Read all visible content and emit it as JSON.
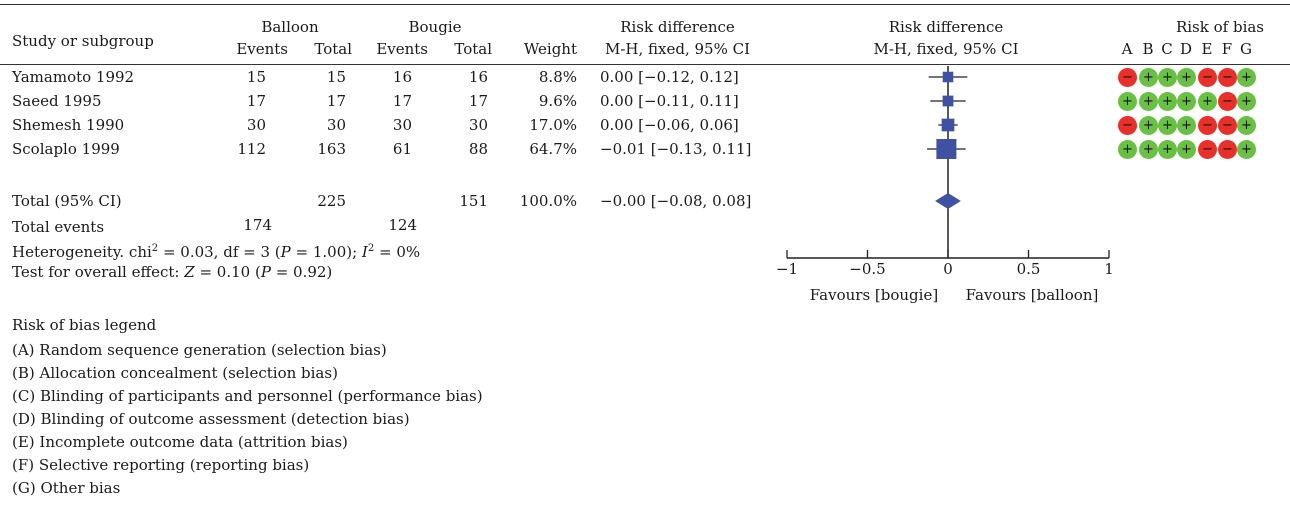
{
  "header": {
    "study_or_subgroup": "Study or subgroup",
    "group1": "Balloon",
    "group2": "Bougie",
    "events": "Events",
    "total": "Total",
    "weight": "Weight",
    "rd_title": "Risk difference",
    "rd_method": "M-H, fixed, 95% CI",
    "rob_title": "Risk of bias",
    "rob_letters": [
      "A",
      "B",
      "C",
      "D",
      "E",
      "F",
      "G"
    ]
  },
  "studies": [
    {
      "name": "Yamamoto 1992",
      "e1": "15",
      "t1": "15",
      "e2": "16",
      "t2": "16",
      "weight": "8.8%",
      "ci_text": "0.00 [−0.12, 0.12]",
      "rob": [
        "-",
        "+",
        "+",
        "+",
        "-",
        "-",
        "+"
      ]
    },
    {
      "name": "Saeed 1995",
      "e1": "17",
      "t1": "17",
      "e2": "17",
      "t2": "17",
      "weight": "9.6%",
      "ci_text": "0.00 [−0.11, 0.11]",
      "rob": [
        "+",
        "+",
        "+",
        "+",
        "+",
        "-",
        "+"
      ]
    },
    {
      "name": "Shemesh 1990",
      "e1": "30",
      "t1": "30",
      "e2": "30",
      "t2": "30",
      "weight": "17.0%",
      "ci_text": "0.00 [−0.06, 0.06]",
      "rob": [
        "-",
        "+",
        "+",
        "+",
        "-",
        "-",
        "+"
      ]
    },
    {
      "name": "Scolaplo 1999",
      "e1": "112",
      "t1": "163",
      "e2": "61",
      "t2": "88",
      "weight": "64.7%",
      "ci_text": "−0.01 [−0.13, 0.11]",
      "rob": [
        "+",
        "+",
        "+",
        "+",
        "-",
        "-",
        "+"
      ]
    }
  ],
  "total_row": {
    "name": "Total (95% CI)",
    "t1": "225",
    "t2": "151",
    "weight": "100.0%",
    "ci_text": "−0.00 [−0.08, 0.08]"
  },
  "total_events": {
    "label": "Total events",
    "e1": "174",
    "e2": "124"
  },
  "heterogeneity": {
    "prefix": "Heterogeneity. chi",
    "sup": "2",
    "mid": " = 0.03, df = 3 (",
    "p": "P",
    "p_val": " = 1.00); ",
    "i": "I",
    "i_sup": "2",
    "i_val": " = 0%"
  },
  "overall_effect": {
    "prefix": "Test for overall effect: ",
    "z": "Z",
    "z_val": " = 0.10 (",
    "p": "P",
    "p_val": " = 0.92)"
  },
  "legend": {
    "title": "Risk of bias legend",
    "items": [
      "(A) Random sequence generation (selection bias)",
      "(B) Allocation concealment (selection bias)",
      "(C) Blinding of participants and personnel (performance bias)",
      "(D) Blinding of outcome assessment (detection bias)",
      "(E) Incomplete outcome data (attrition bias)",
      "(F) Selective reporting (reporting bias)",
      "(G) Other bias"
    ]
  },
  "colors": {
    "marker": "#3f51a3",
    "rob_low": "#6abf45",
    "rob_high": "#e8302a",
    "line": "#333333"
  },
  "chart_data": {
    "type": "forest",
    "title": "Risk difference",
    "subtitle": "M-H, fixed, 95% CI",
    "xlim": [
      -1,
      1
    ],
    "xticks": [
      "−1",
      "−0.5",
      "0",
      "0.5",
      "1"
    ],
    "xtick_values": [
      -1,
      -0.5,
      0,
      0.5,
      1
    ],
    "favours_left": "Favours [bougie]",
    "favours_right": "Favours [balloon]",
    "studies": [
      {
        "name": "Yamamoto 1992",
        "estimate": 0.0,
        "lower": -0.12,
        "upper": 0.12,
        "weight": 8.8
      },
      {
        "name": "Saeed 1995",
        "estimate": 0.0,
        "lower": -0.11,
        "upper": 0.11,
        "weight": 9.6
      },
      {
        "name": "Shemesh 1990",
        "estimate": 0.0,
        "lower": -0.06,
        "upper": 0.06,
        "weight": 17.0
      },
      {
        "name": "Scolaplo 1999",
        "estimate": -0.01,
        "lower": -0.13,
        "upper": 0.11,
        "weight": 64.7
      }
    ],
    "total": {
      "estimate": -0.0,
      "lower": -0.08,
      "upper": 0.08
    }
  }
}
